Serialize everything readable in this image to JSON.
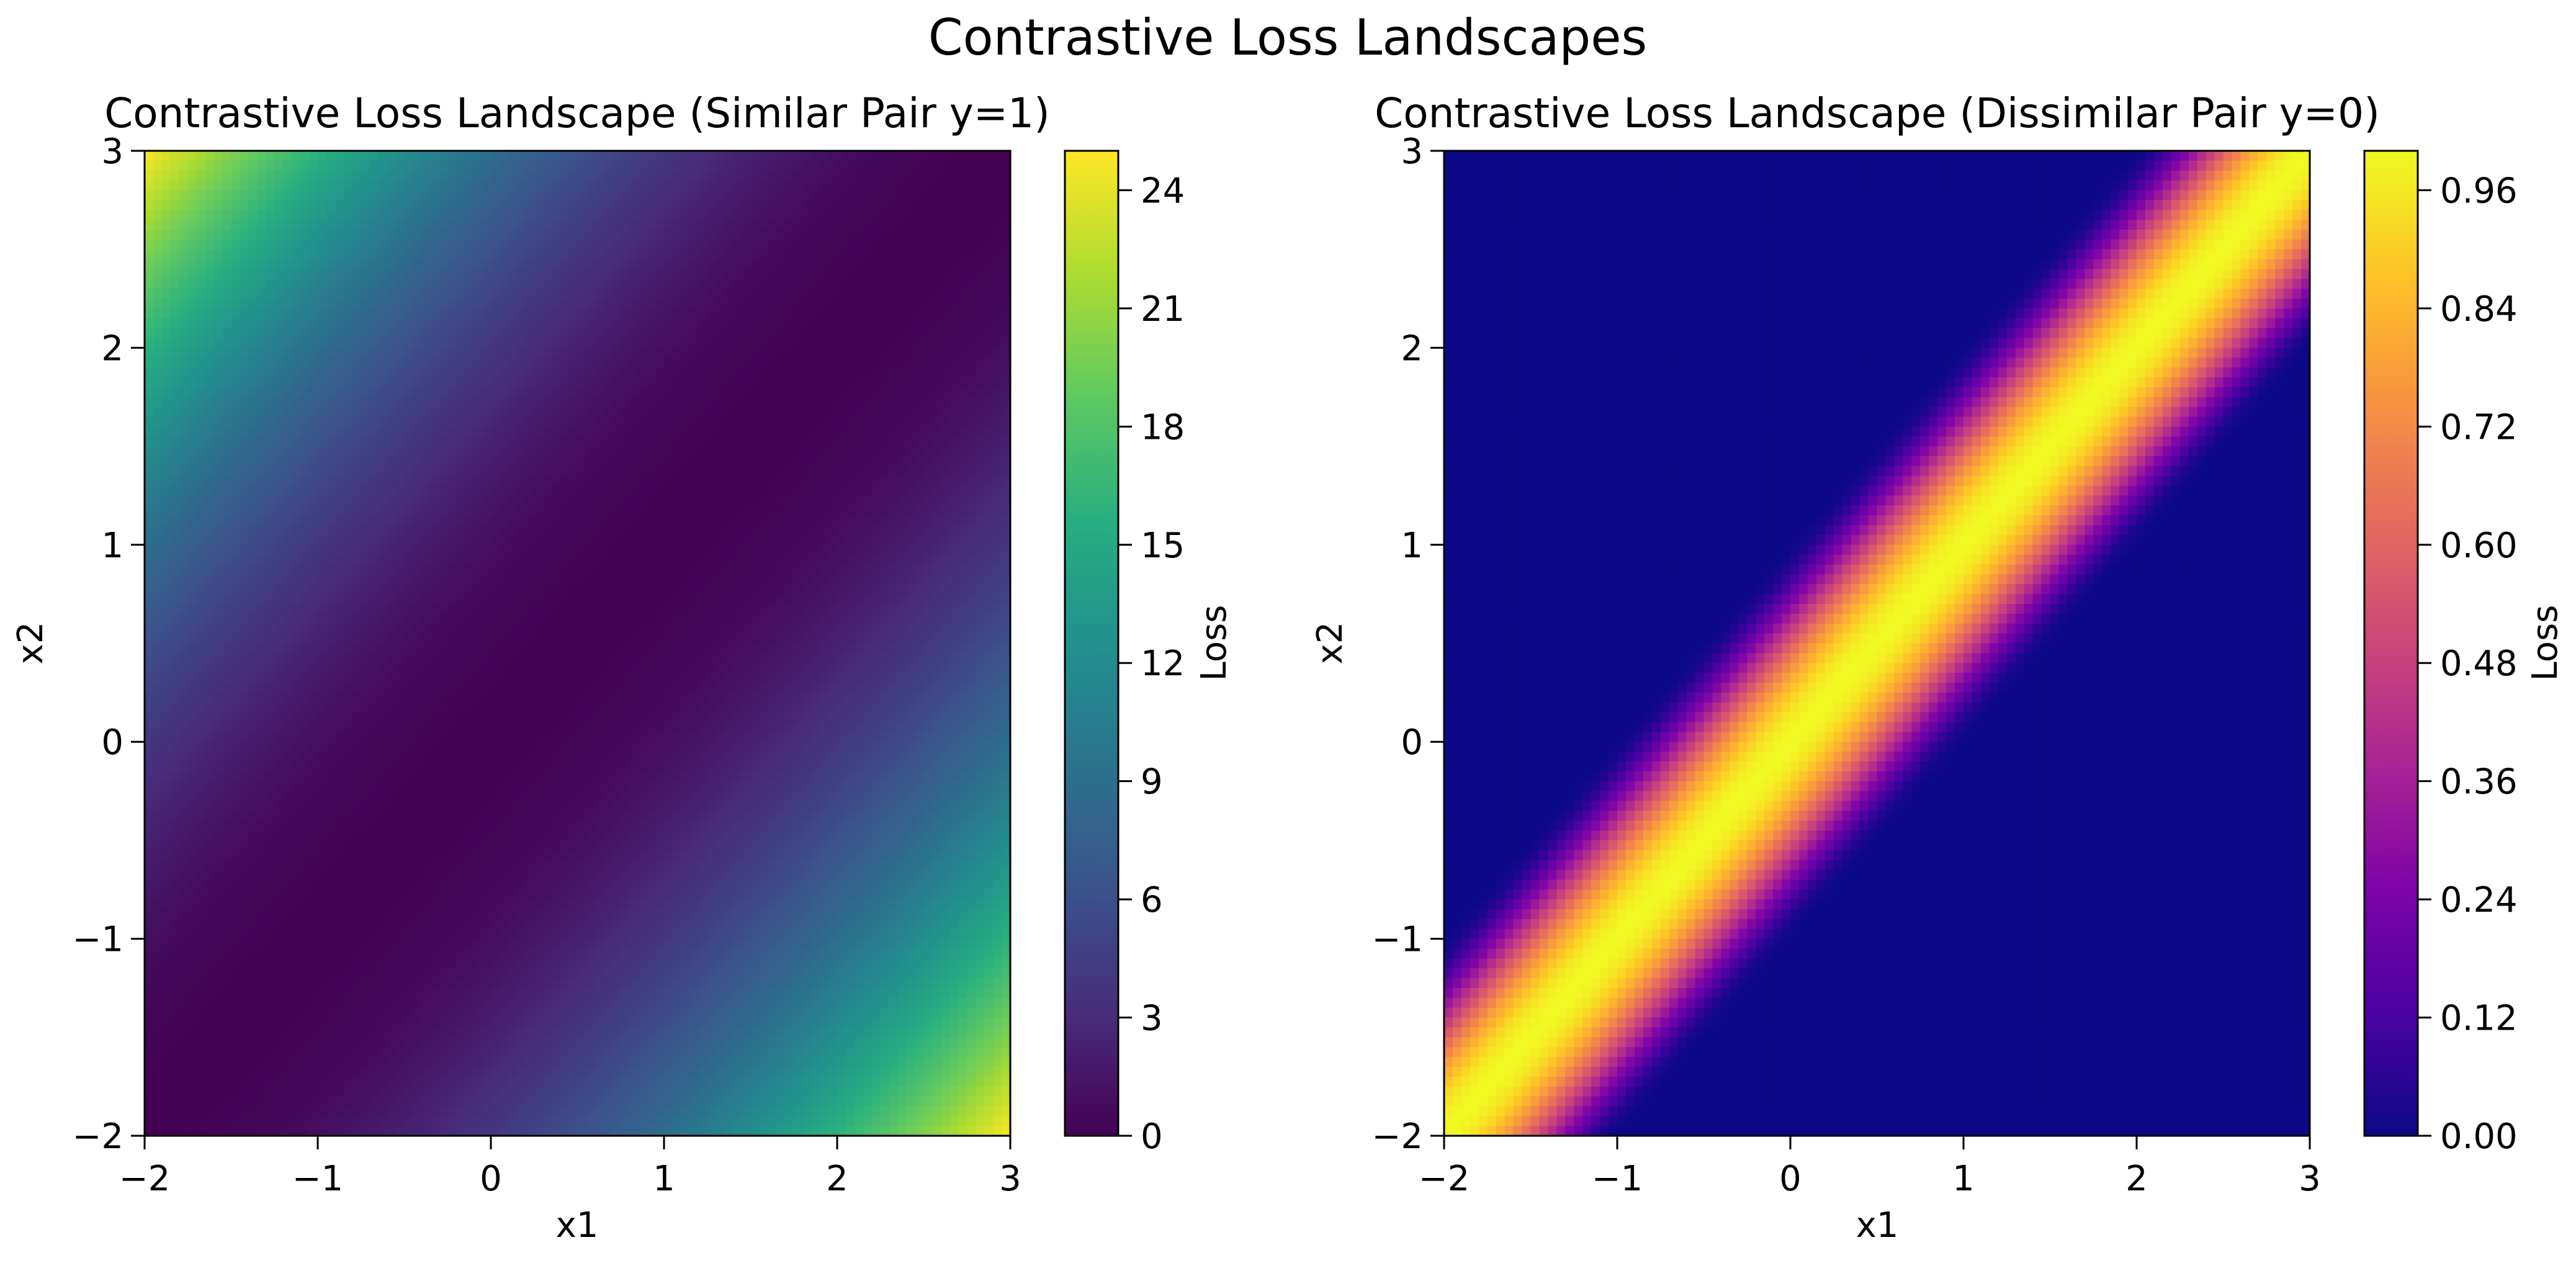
{
  "suptitle": "Contrastive Loss Landscapes",
  "chart_data": [
    {
      "type": "heatmap",
      "title": "Contrastive Loss Landscape (Similar Pair y=1)",
      "xlabel": "x1",
      "ylabel": "x2",
      "xlim": [
        -2,
        3
      ],
      "ylim": [
        -2,
        3
      ],
      "xticks": [
        "−2",
        "−1",
        "0",
        "1",
        "2",
        "3"
      ],
      "yticks": [
        "−2",
        "−1",
        "0",
        "1",
        "2",
        "3"
      ],
      "function": "(x1 - x2)^2",
      "colormap": "viridis",
      "colorbar": {
        "label": "Loss",
        "range": [
          0,
          25
        ],
        "ticks": [
          "0",
          "3",
          "6",
          "9",
          "12",
          "15",
          "18",
          "21",
          "24"
        ]
      }
    },
    {
      "type": "heatmap",
      "title": "Contrastive Loss Landscape (Dissimilar Pair y=0)",
      "xlabel": "x1",
      "ylabel": "x2",
      "xlim": [
        -2,
        3
      ],
      "ylim": [
        -2,
        3
      ],
      "xticks": [
        "−2",
        "−1",
        "0",
        "1",
        "2",
        "3"
      ],
      "yticks": [
        "−2",
        "−1",
        "0",
        "1",
        "2",
        "3"
      ],
      "function": "max(0, 1 - (x1 - x2)^2)^2",
      "colormap": "plasma",
      "colorbar": {
        "label": "Loss",
        "range": [
          0,
          1
        ],
        "ticks": [
          "0.00",
          "0.12",
          "0.24",
          "0.36",
          "0.48",
          "0.60",
          "0.72",
          "0.84",
          "0.96"
        ]
      }
    }
  ]
}
